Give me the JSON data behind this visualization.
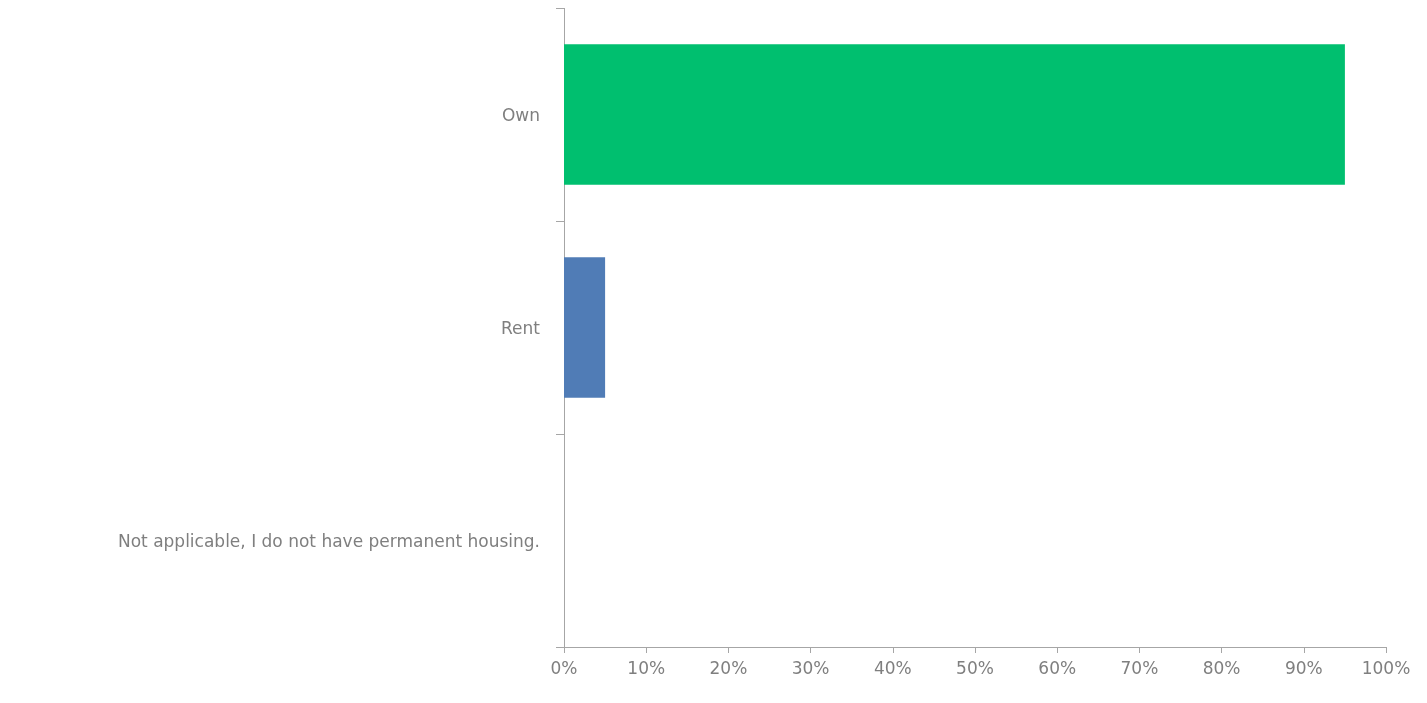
{
  "chart_data": {
    "type": "bar",
    "orientation": "horizontal",
    "categories": [
      "Own",
      "Rent",
      "Not applicable, I do not have permanent housing."
    ],
    "values": [
      95,
      5,
      0
    ],
    "colors": [
      "#00bf6f",
      "#507cb6",
      "#507cb6"
    ],
    "xlim": [
      0,
      100
    ],
    "xticks": [
      {
        "value": 0,
        "label": "0%"
      },
      {
        "value": 10,
        "label": "10%"
      },
      {
        "value": 20,
        "label": "20%"
      },
      {
        "value": 30,
        "label": "30%"
      },
      {
        "value": 40,
        "label": "40%"
      },
      {
        "value": 50,
        "label": "50%"
      },
      {
        "value": 60,
        "label": "60%"
      },
      {
        "value": 70,
        "label": "70%"
      },
      {
        "value": 80,
        "label": "80%"
      },
      {
        "value": 90,
        "label": "90%"
      },
      {
        "value": 100,
        "label": "100%"
      }
    ],
    "grid": false
  }
}
